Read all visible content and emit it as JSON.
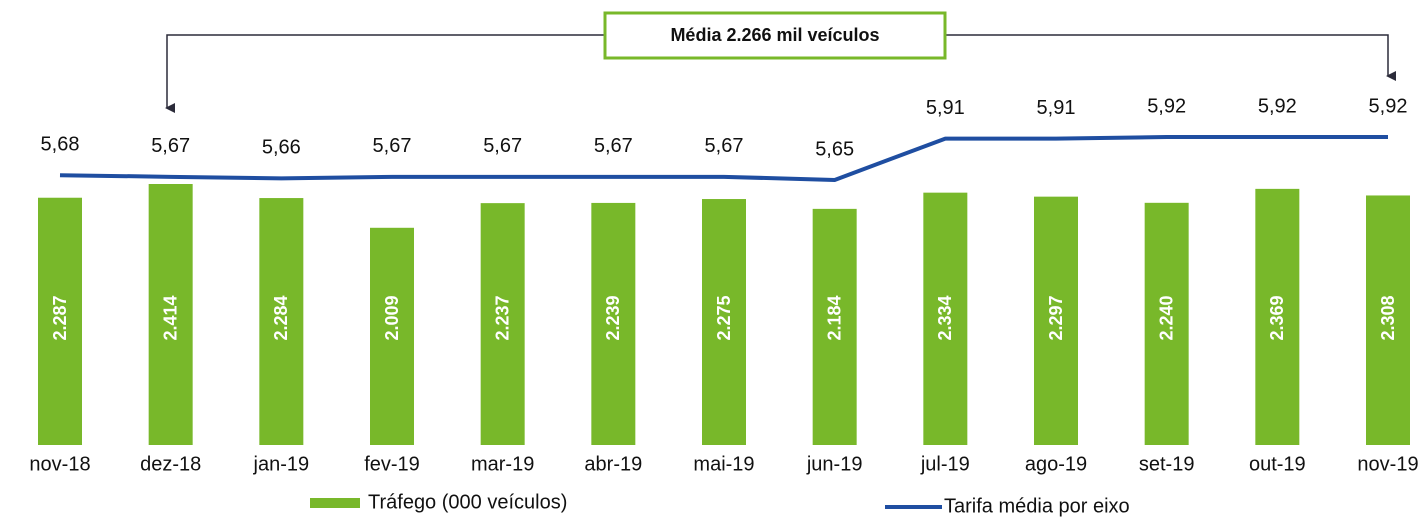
{
  "chart_data": {
    "type": "bar",
    "annotation": "Média 2.266 mil veículos",
    "categories": [
      "nov-18",
      "dez-18",
      "jan-19",
      "fev-19",
      "mar-19",
      "abr-19",
      "mai-19",
      "jun-19",
      "jul-19",
      "ago-19",
      "set-19",
      "out-19",
      "nov-19"
    ],
    "series": [
      {
        "name": "Tráfego (000 veículos)",
        "type": "bar",
        "color": "#78b82a",
        "values": [
          2287,
          2414,
          2284,
          2009,
          2237,
          2239,
          2275,
          2184,
          2334,
          2297,
          2240,
          2369,
          2308
        ],
        "value_labels": [
          "2.287",
          "2.414",
          "2.284",
          "2.009",
          "2.237",
          "2.239",
          "2.275",
          "2.184",
          "2.334",
          "2.297",
          "2.240",
          "2.369",
          "2.308"
        ]
      },
      {
        "name": "Tarifa média por eixo",
        "type": "line",
        "color": "#1f4ea1",
        "values": [
          5.68,
          5.67,
          5.66,
          5.67,
          5.67,
          5.67,
          5.67,
          5.65,
          5.91,
          5.91,
          5.92,
          5.92,
          5.92
        ],
        "value_labels": [
          "5,68",
          "5,67",
          "5,66",
          "5,67",
          "5,67",
          "5,67",
          "5,67",
          "5,65",
          "5,91",
          "5,91",
          "5,92",
          "5,92",
          "5,92"
        ]
      }
    ]
  }
}
